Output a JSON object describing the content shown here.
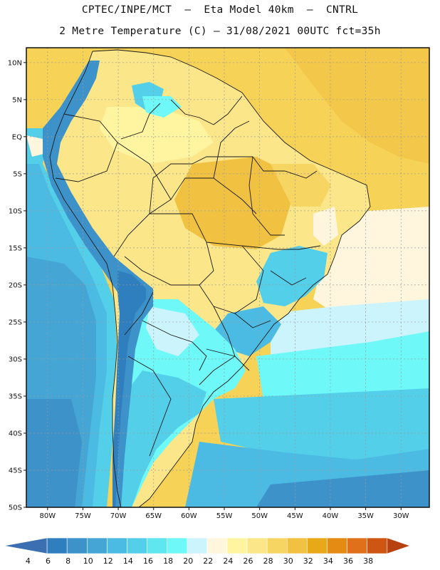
{
  "header": {
    "line1": "CPTEC/INPE/MCT  –  Eta Model 40km  –  CNTRL",
    "line2": "2 Metre Temperature (C) – 31/08/2021 00UTC fct=35h"
  },
  "map": {
    "lat_labels": [
      "10N",
      "5N",
      "EQ",
      "5S",
      "10S",
      "15S",
      "20S",
      "25S",
      "30S",
      "35S",
      "40S",
      "45S",
      "50S"
    ],
    "lon_labels": [
      "80W",
      "75W",
      "70W",
      "65W",
      "60W",
      "55W",
      "50W",
      "45W",
      "40W",
      "35W",
      "30W"
    ],
    "lat_values": [
      10,
      5,
      0,
      -5,
      -10,
      -15,
      -20,
      -25,
      -30,
      -35,
      -40,
      -45,
      -50
    ],
    "lon_values": [
      -80,
      -75,
      -70,
      -65,
      -60,
      -55,
      -50,
      -45,
      -40,
      -35,
      -30
    ],
    "extent": {
      "lon_min": -83,
      "lon_max": -26,
      "lat_min": -50,
      "lat_max": 12
    }
  },
  "colorbar": {
    "ticks": [
      "4",
      "6",
      "8",
      "10",
      "12",
      "14",
      "16",
      "18",
      "20",
      "22",
      "24",
      "26",
      "28",
      "30",
      "32",
      "34",
      "36",
      "38"
    ],
    "colors": [
      "#3b6fb1",
      "#2f7fbe",
      "#3d92c9",
      "#45a6d6",
      "#4cbbe3",
      "#54cfea",
      "#5fe6ef",
      "#6ff8f8",
      "#ccf4fd",
      "#fff6dd",
      "#fff5a0",
      "#fbe68a",
      "#f7d562",
      "#f1c141",
      "#e8a919",
      "#e58b14",
      "#e07019",
      "#cf5513",
      "#b8420f"
    ]
  },
  "colors": {
    "ocean_warm": "#f6d257",
    "ocean_mild": "#fff6dd",
    "ocean_cool": "#ccf4fd",
    "land_warm": "#fbe68a",
    "land_hot": "#f1c141",
    "cold_shades": "#3d92c9",
    "border": "#1a1a1a",
    "grid": "#9a9a9a"
  }
}
